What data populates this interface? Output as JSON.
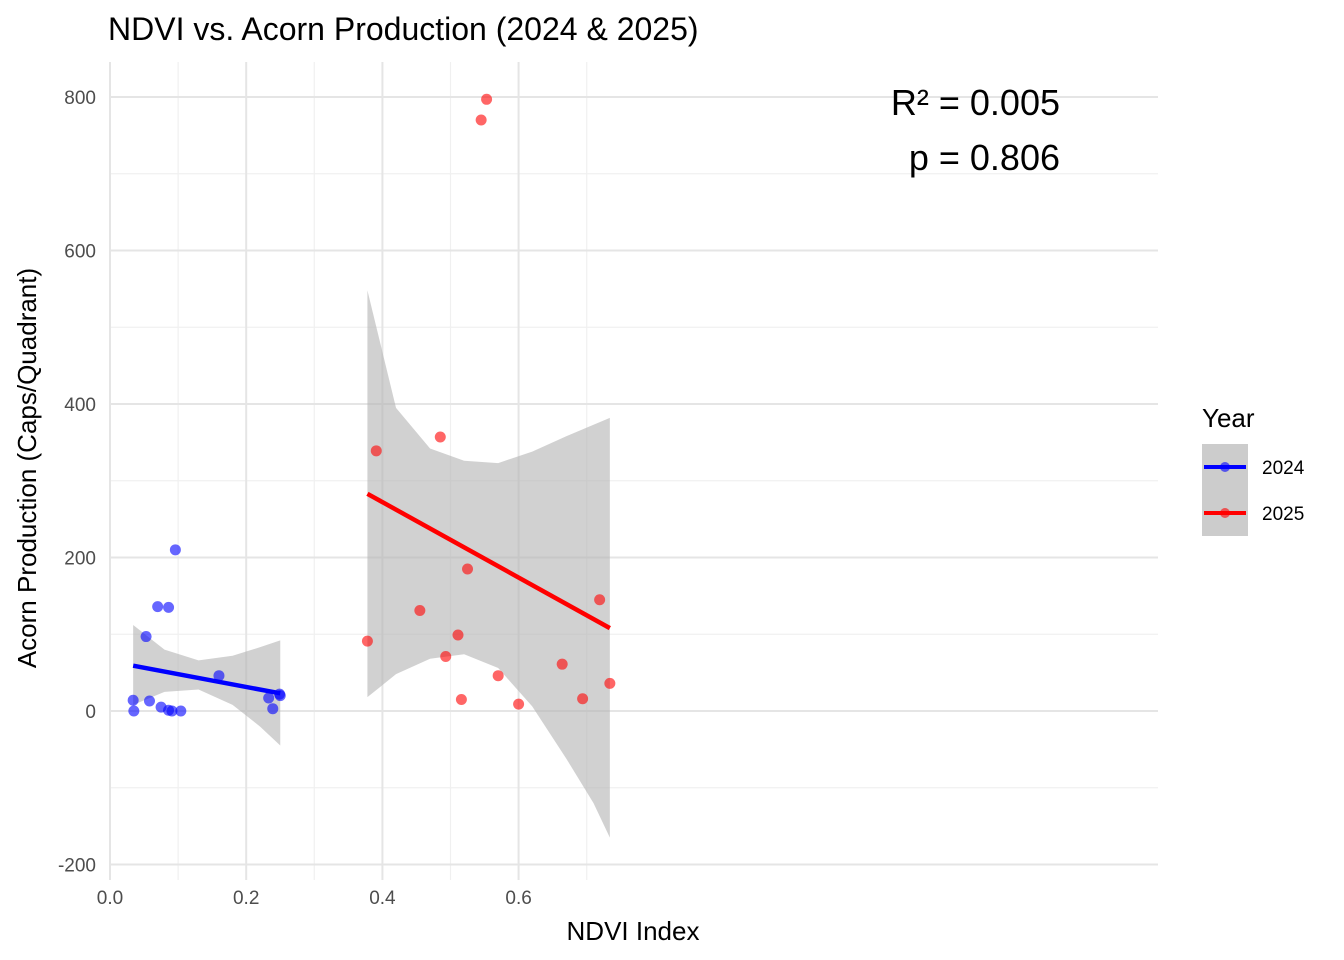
{
  "chart_data": {
    "type": "scatter",
    "title": "NDVI vs. Acorn Production (2024 & 2025)",
    "xlabel": "NDVI Index",
    "ylabel": "Acorn Production (Caps/Quadrant)",
    "xlim": [
      0.0,
      0.77
    ],
    "ylim": [
      -200,
      850
    ],
    "x_ticks": [
      0.0,
      0.2,
      0.4,
      0.6
    ],
    "x_tick_labels": [
      "0.0",
      "0.2",
      "0.4",
      "0.6"
    ],
    "y_ticks": [
      -200,
      0,
      200,
      400,
      600,
      800
    ],
    "y_tick_labels": [
      "-200",
      "0",
      "200",
      "400",
      "600",
      "800"
    ],
    "grid": true,
    "legend": {
      "title": "Year",
      "position": "right",
      "entries": [
        "2024",
        "2025"
      ]
    },
    "annotation": {
      "r2": "R² = 0.005",
      "p": "p = 0.806"
    },
    "series": [
      {
        "name": "2024",
        "color": "#0000ff",
        "points": [
          [
            0.034,
            14
          ],
          [
            0.035,
            0
          ],
          [
            0.053,
            97
          ],
          [
            0.058,
            13
          ],
          [
            0.07,
            136
          ],
          [
            0.075,
            5
          ],
          [
            0.086,
            135
          ],
          [
            0.086,
            1
          ],
          [
            0.091,
            0
          ],
          [
            0.096,
            210
          ],
          [
            0.104,
            0
          ],
          [
            0.16,
            46
          ],
          [
            0.233,
            17
          ],
          [
            0.239,
            3
          ],
          [
            0.249,
            22
          ],
          [
            0.25,
            20
          ]
        ],
        "fit": {
          "x": [
            0.034,
            0.25
          ],
          "y": [
            59,
            23
          ]
        },
        "band": {
          "x": [
            0.034,
            0.08,
            0.13,
            0.18,
            0.22,
            0.25
          ],
          "upper": [
            112,
            80,
            66,
            72,
            83,
            92
          ],
          "lower": [
            8,
            25,
            28,
            8,
            -20,
            -45
          ]
        }
      },
      {
        "name": "2025",
        "color": "#ff0000",
        "points": [
          [
            0.378,
            91
          ],
          [
            0.391,
            339
          ],
          [
            0.455,
            131
          ],
          [
            0.485,
            357
          ],
          [
            0.493,
            71
          ],
          [
            0.511,
            99
          ],
          [
            0.516,
            15
          ],
          [
            0.525,
            185
          ],
          [
            0.545,
            770
          ],
          [
            0.553,
            797
          ],
          [
            0.57,
            46
          ],
          [
            0.6,
            9
          ],
          [
            0.664,
            61
          ],
          [
            0.694,
            16
          ],
          [
            0.719,
            145
          ],
          [
            0.734,
            36
          ]
        ],
        "fit": {
          "x": [
            0.378,
            0.734
          ],
          "y": [
            283,
            108
          ]
        },
        "band": {
          "x": [
            0.378,
            0.42,
            0.47,
            0.52,
            0.57,
            0.62,
            0.67,
            0.71,
            0.734
          ],
          "upper": [
            548,
            395,
            342,
            326,
            323,
            338,
            358,
            373,
            382
          ],
          "lower": [
            18,
            48,
            68,
            74,
            56,
            6,
            -62,
            -120,
            -165
          ]
        }
      }
    ]
  },
  "colors": {
    "band_fill": "#b3b3b3",
    "grid_major": "#e5e5e5",
    "grid_minor": "#f0f0f0"
  }
}
